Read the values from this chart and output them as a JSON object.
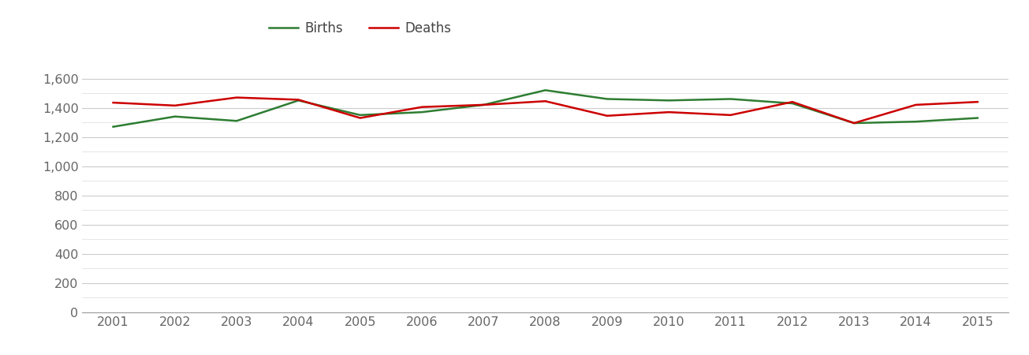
{
  "years": [
    2001,
    2002,
    2003,
    2004,
    2005,
    2006,
    2007,
    2008,
    2009,
    2010,
    2011,
    2012,
    2013,
    2014,
    2015
  ],
  "births": [
    1270,
    1340,
    1310,
    1450,
    1350,
    1370,
    1420,
    1520,
    1460,
    1450,
    1460,
    1430,
    1295,
    1305,
    1330
  ],
  "deaths": [
    1435,
    1415,
    1470,
    1455,
    1330,
    1405,
    1420,
    1445,
    1345,
    1370,
    1350,
    1440,
    1295,
    1420,
    1440
  ],
  "births_color": "#2e7d32",
  "deaths_color": "#cc0000",
  "line_width": 1.8,
  "ylim": [
    0,
    1700
  ],
  "yticks_major": [
    0,
    200,
    400,
    600,
    800,
    1000,
    1200,
    1400,
    1600
  ],
  "yticks_minor": [
    100,
    300,
    500,
    700,
    900,
    1100,
    1300,
    1500
  ],
  "legend_labels": [
    "Births",
    "Deaths"
  ],
  "background_color": "#ffffff",
  "grid_color_major": "#cccccc",
  "grid_color_minor": "#e0e0e0",
  "tick_label_color": "#666666",
  "tick_fontsize": 11.5
}
